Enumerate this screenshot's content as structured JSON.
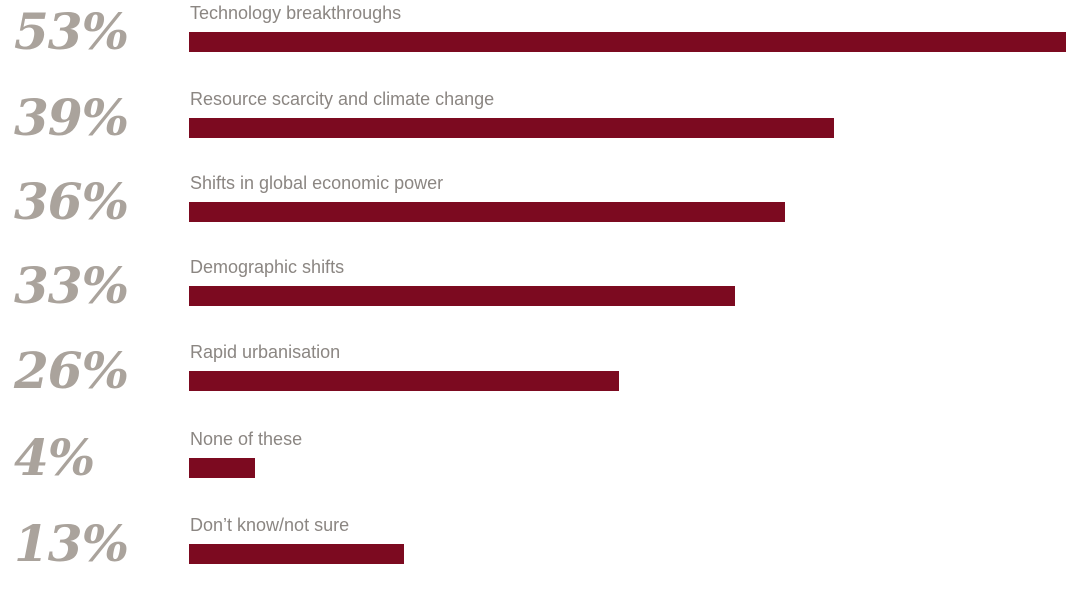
{
  "chart_data": {
    "type": "bar",
    "orientation": "horizontal",
    "categories": [
      "Technology breakthroughs",
      "Resource scarcity and climate change",
      "Shifts in global economic power",
      "Demographic shifts",
      "Rapid urbanisation",
      "None of these",
      "Don’t know/not sure"
    ],
    "values": [
      53,
      39,
      36,
      33,
      26,
      4,
      13
    ],
    "value_labels": [
      "53%",
      "39%",
      "36%",
      "33%",
      "26%",
      "4%",
      "13%"
    ],
    "unit": "%",
    "xlim": [
      0,
      53
    ],
    "grid": false,
    "legend": "none",
    "title": "",
    "xlabel": "",
    "ylabel": "",
    "bar_color": "#7c0a20",
    "value_label_color": "#aaa39c",
    "category_label_color": "#8b8682"
  }
}
